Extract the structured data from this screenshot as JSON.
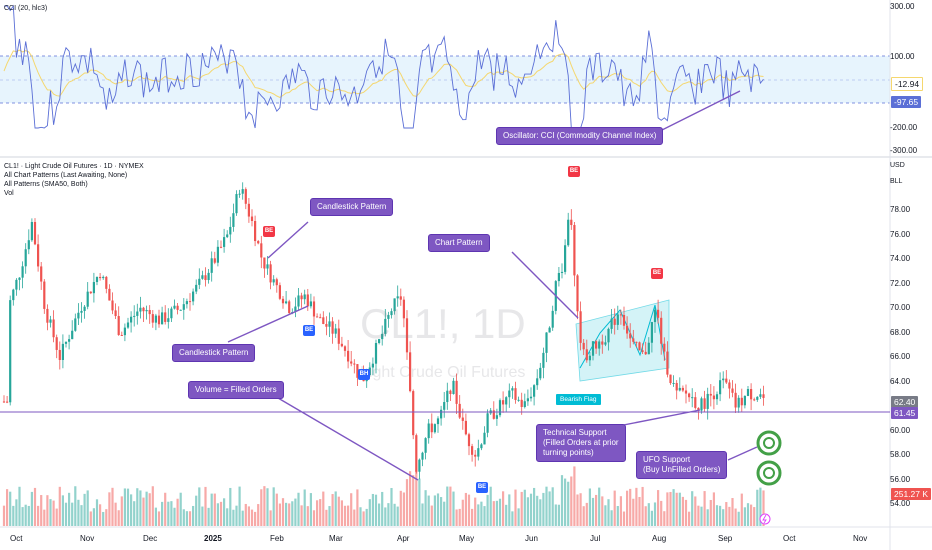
{
  "cci": {
    "legend": "CCI (20, hlc3)",
    "scale": [
      "300.00",
      "100.00",
      "-200.00",
      "-300.00"
    ],
    "value_tags": [
      "-12.94",
      "-97.65"
    ],
    "callout": "Oscillator: CCI (Commodity Channel Index)"
  },
  "main": {
    "legend": [
      "CL1! · Light Crude Oil Futures · 1D · NYMEX",
      "All Chart Patterns (Last Awaiting, None)",
      "All Patterns (SMA50, Both)",
      "Vol"
    ],
    "currency": "USD",
    "unit": "BLL",
    "scale": [
      "78.00",
      "76.00",
      "74.00",
      "72.00",
      "70.00",
      "68.00",
      "66.00",
      "64.00",
      "60.00",
      "58.00",
      "56.00",
      "54.00"
    ],
    "price_tag": "62.40",
    "support_tag": "61.45",
    "volume_tag": "251.27 K",
    "watermark_symbol": "CL1!, 1D",
    "watermark_name": "Light Crude Oil Futures",
    "pattern_label": "Bearish Flag",
    "markers": [
      "BE",
      "BE",
      "BE",
      "BE",
      "BH",
      "BE"
    ]
  },
  "callouts": {
    "candlestick_top": "Candlestick Pattern",
    "candlestick_bottom": "Candlestick Pattern",
    "volume": "Volume = Filled Orders",
    "chart_pattern": "Chart Pattern",
    "technical_support": [
      "Technical Support",
      "(Filled Orders at prior",
      "turning points)"
    ],
    "ufo_support": [
      "UFO Support",
      "(Buy UnFilled Orders)"
    ]
  },
  "time_axis": [
    "Oct",
    "Nov",
    "Dec",
    "2025",
    "Feb",
    "Mar",
    "Apr",
    "May",
    "Jun",
    "Jul",
    "Aug",
    "Sep",
    "Oct",
    "Nov"
  ],
  "colors": {
    "up": "#26a69a",
    "down": "#ef5350",
    "cci": "#5b6fd6",
    "cci_ma": "#f5d76e",
    "callout": "#7e57c2",
    "support": "#7e57c2",
    "flag": "#00bcd4",
    "ufo": "#43a047"
  }
}
